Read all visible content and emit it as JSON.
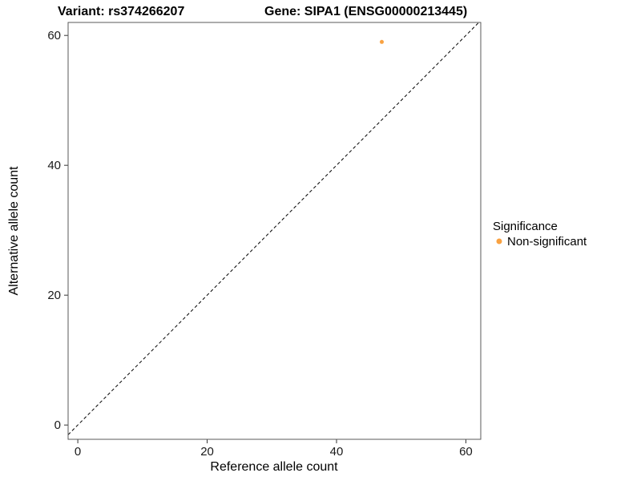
{
  "figure": {
    "title_variant": "Variant: rs374266207",
    "title_gene": "Gene: SIPA1 (ENSG00000213445)",
    "xlabel": "Reference allele count",
    "ylabel": "Alternative allele count"
  },
  "legend": {
    "title": "Significance",
    "entries": [
      {
        "label": "Non-significant",
        "color": "#F9A242"
      }
    ]
  },
  "chart_data": {
    "type": "scatter",
    "title": "Variant: rs374266207   Gene: SIPA1 (ENSG00000213445)",
    "xlabel": "Reference allele count",
    "ylabel": "Alternative allele count",
    "xlim": [
      -1.5,
      62.3
    ],
    "ylim": [
      -2.2,
      62.0
    ],
    "xticks": [
      0,
      20,
      40,
      60
    ],
    "yticks": [
      0,
      20,
      40,
      60
    ],
    "grid": false,
    "legend_title": "Significance",
    "legend_position": "right",
    "identity_line": {
      "slope": 1,
      "intercept": 0,
      "style": "dashed",
      "color": "#000000"
    },
    "series": [
      {
        "name": "Non-significant",
        "color": "#F9A242",
        "points": [
          {
            "x": 47,
            "y": 59
          }
        ]
      }
    ]
  }
}
